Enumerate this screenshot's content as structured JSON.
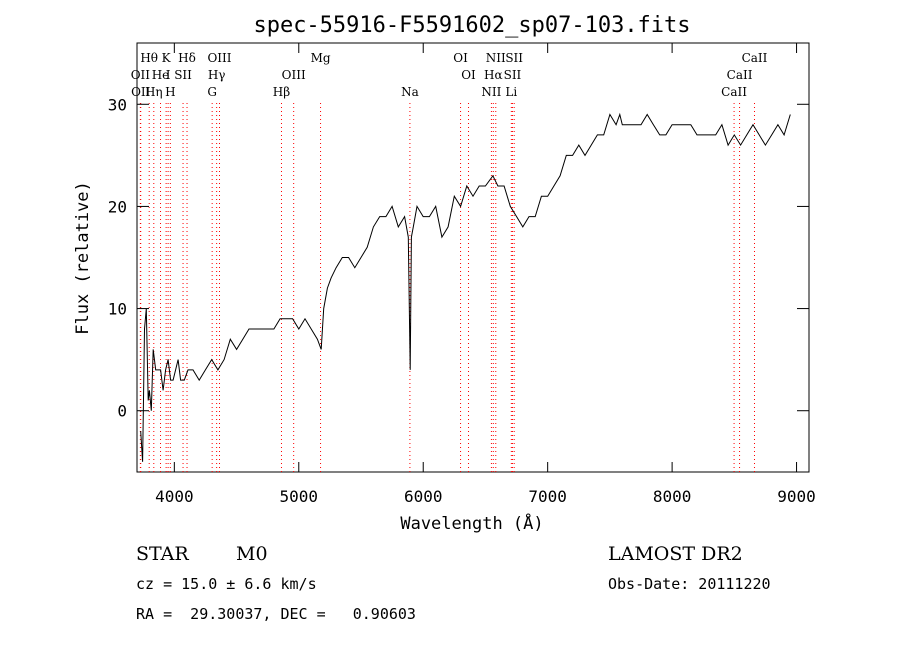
{
  "chart_data": {
    "type": "line",
    "title": "spec-55916-F5591602_sp07-103.fits",
    "xlabel": "Wavelength (Å)",
    "ylabel": "Flux (relative)",
    "xlim": [
      3700,
      9100
    ],
    "ylim": [
      -6,
      36
    ],
    "xticks": [
      4000,
      5000,
      6000,
      7000,
      8000,
      9000
    ],
    "yticks": [
      0,
      10,
      20,
      30
    ],
    "grid": false,
    "line_color": "#000000",
    "marker_color": "#ff0000",
    "series": [
      {
        "x": [
          3730,
          3745,
          3760,
          3775,
          3790,
          3800,
          3815,
          3830,
          3850,
          3870,
          3890,
          3910,
          3930,
          3950,
          3970,
          3990,
          4010,
          4030,
          4050,
          4080,
          4110,
          4150,
          4200,
          4250,
          4300,
          4350,
          4400,
          4450,
          4500,
          4550,
          4600,
          4650,
          4700,
          4750,
          4800,
          4850,
          4900,
          4950,
          5000,
          5050,
          5100,
          5150,
          5180,
          5200,
          5230,
          5260,
          5300,
          5350,
          5400,
          5450,
          5500,
          5550,
          5600,
          5650,
          5700,
          5750,
          5800,
          5850,
          5880,
          5895,
          5905,
          5920,
          5950,
          6000,
          6050,
          6100,
          6150,
          6200,
          6250,
          6300,
          6350,
          6400,
          6450,
          6500,
          6560,
          6600,
          6650,
          6700,
          6750,
          6800,
          6850,
          6900,
          6950,
          7000,
          7050,
          7100,
          7150,
          7200,
          7250,
          7300,
          7350,
          7400,
          7450,
          7500,
          7550,
          7580,
          7600,
          7650,
          7700,
          7750,
          7800,
          7850,
          7900,
          7950,
          8000,
          8050,
          8100,
          8150,
          8200,
          8250,
          8300,
          8350,
          8400,
          8450,
          8500,
          8550,
          8600,
          8650,
          8700,
          8750,
          8800,
          8850,
          8900,
          8950
        ],
        "y": [
          -2,
          -5,
          8,
          10,
          1,
          2,
          0,
          6,
          4,
          4,
          4,
          2,
          4,
          5,
          3,
          3,
          4,
          5,
          3,
          3,
          4,
          4,
          3,
          4,
          5,
          4,
          5,
          7,
          6,
          7,
          8,
          8,
          8,
          8,
          8,
          9,
          9,
          9,
          8,
          9,
          8,
          7,
          6,
          10,
          12,
          13,
          14,
          15,
          15,
          14,
          15,
          16,
          18,
          19,
          19,
          20,
          18,
          19,
          17,
          4,
          17,
          18,
          20,
          19,
          19,
          20,
          17,
          18,
          21,
          20,
          22,
          21,
          22,
          22,
          23,
          22,
          22,
          20,
          19,
          18,
          19,
          19,
          21,
          21,
          22,
          23,
          25,
          25,
          26,
          25,
          26,
          27,
          27,
          29,
          28,
          29,
          28,
          28,
          28,
          28,
          29,
          28,
          27,
          27,
          28,
          28,
          28,
          28,
          27,
          27,
          27,
          27,
          28,
          26,
          27,
          26,
          27,
          28,
          27,
          26,
          27,
          28,
          27,
          29
        ]
      }
    ],
    "lines": [
      {
        "label": "Hθ",
        "x": 3798,
        "row": 0
      },
      {
        "label": "K",
        "x": 3934,
        "row": 0
      },
      {
        "label": "Hδ",
        "x": 4102,
        "row": 0
      },
      {
        "label": "OIII",
        "x": 4363,
        "row": 0
      },
      {
        "label": "Mg",
        "x": 5175,
        "row": 0
      },
      {
        "label": "OI",
        "x": 6300,
        "row": 0
      },
      {
        "label": "NII",
        "x": 6583,
        "row": 0
      },
      {
        "label": "SII",
        "x": 6731,
        "row": 0
      },
      {
        "label": "CaII",
        "x": 8662,
        "row": 0
      },
      {
        "label": "OII",
        "x": 3727,
        "row": 1
      },
      {
        "label": "He",
        "x": 3889,
        "row": 1
      },
      {
        "label": "I",
        "x": 3950,
        "row": 1
      },
      {
        "label": "SII",
        "x": 4070,
        "row": 1
      },
      {
        "label": "Hγ",
        "x": 4340,
        "row": 1
      },
      {
        "label": "OIII",
        "x": 4959,
        "row": 1
      },
      {
        "label": "OI",
        "x": 6364,
        "row": 1
      },
      {
        "label": "Hα",
        "x": 6563,
        "row": 1
      },
      {
        "label": "SII",
        "x": 6717,
        "row": 1
      },
      {
        "label": "CaII",
        "x": 8542,
        "row": 1
      },
      {
        "label": "OII",
        "x": 3730,
        "row": 2
      },
      {
        "label": "Hη",
        "x": 3835,
        "row": 2
      },
      {
        "label": "H",
        "x": 3968,
        "row": 2
      },
      {
        "label": "G",
        "x": 4304,
        "row": 2
      },
      {
        "label": "Hβ",
        "x": 4861,
        "row": 2
      },
      {
        "label": "Na",
        "x": 5893,
        "row": 2
      },
      {
        "label": "NII",
        "x": 6548,
        "row": 2
      },
      {
        "label": "Li",
        "x": 6708,
        "row": 2
      },
      {
        "label": "CaII",
        "x": 8498,
        "row": 2
      }
    ]
  },
  "footer": {
    "object": "STAR",
    "subclass": "M0",
    "survey": "LAMOST DR2",
    "cz": "cz = 15.0 ± 6.6 km/s",
    "obs_date": "Obs-Date: 20111220",
    "coords": "RA =  29.30037, DEC =   0.90603"
  }
}
